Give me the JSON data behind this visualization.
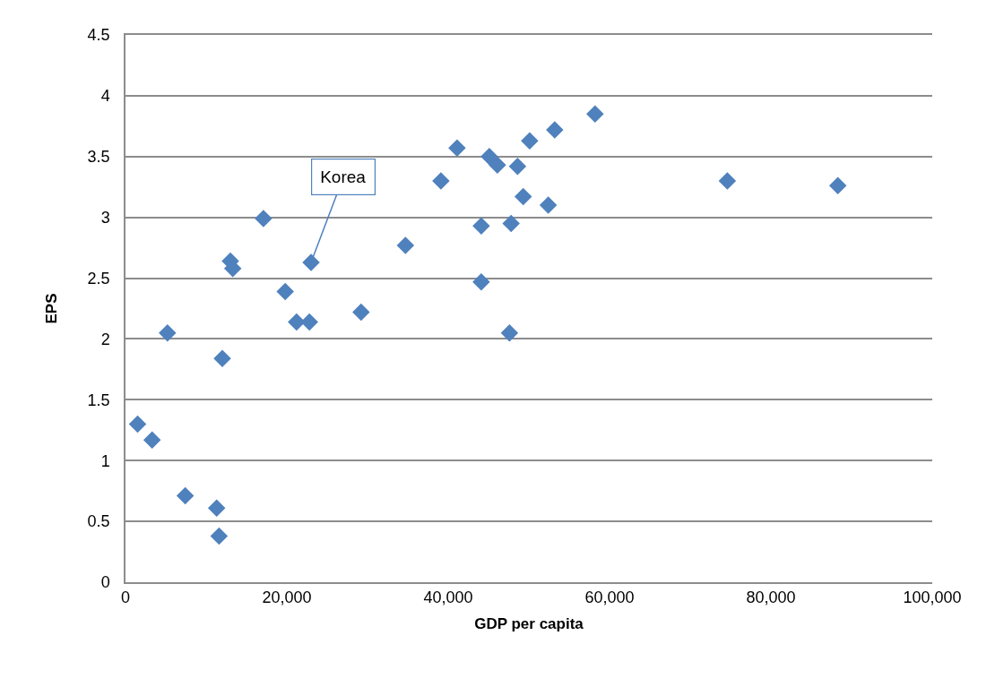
{
  "chart_data": {
    "type": "scatter",
    "xlabel": "GDP per capita",
    "ylabel": "EPS",
    "x": [
      1500,
      3300,
      5200,
      7400,
      11300,
      11600,
      12000,
      13000,
      13300,
      17100,
      19800,
      21200,
      22800,
      23000,
      29200,
      34700,
      39100,
      41100,
      44100,
      44100,
      45100,
      46100,
      47600,
      47800,
      48600,
      49300,
      50100,
      52400,
      53200,
      58200,
      74600,
      88300
    ],
    "series": [
      {
        "color": "#4f81bd",
        "values": [
          1.3,
          1.17,
          2.05,
          0.71,
          0.61,
          0.38,
          1.84,
          2.64,
          2.58,
          2.99,
          2.39,
          2.14,
          2.14,
          2.63,
          2.22,
          2.77,
          3.3,
          3.57,
          2.93,
          2.47,
          3.5,
          3.43,
          2.05,
          2.95,
          3.42,
          3.17,
          3.63,
          3.1,
          3.72,
          3.85,
          3.3,
          3.26
        ]
      }
    ],
    "xlim": [
      0,
      100000
    ],
    "xticks": [
      0,
      {
        "value": 20000,
        "label": "20,000"
      },
      {
        "value": 40000,
        "label": "40,000"
      },
      {
        "value": 60000,
        "label": "60,000"
      },
      {
        "value": 80000,
        "label": "80,000"
      },
      {
        "value": 100000,
        "label": "100,000"
      }
    ],
    "ylim": [
      0,
      4.5
    ],
    "yticks": [
      0,
      0.5,
      1,
      1.5,
      2,
      2.5,
      3,
      3.5,
      4,
      4.5
    ],
    "annotations": [
      {
        "text": "Korea",
        "x": 23000,
        "y": 2.63
      }
    ],
    "grid": "y",
    "marker": "diamond"
  }
}
